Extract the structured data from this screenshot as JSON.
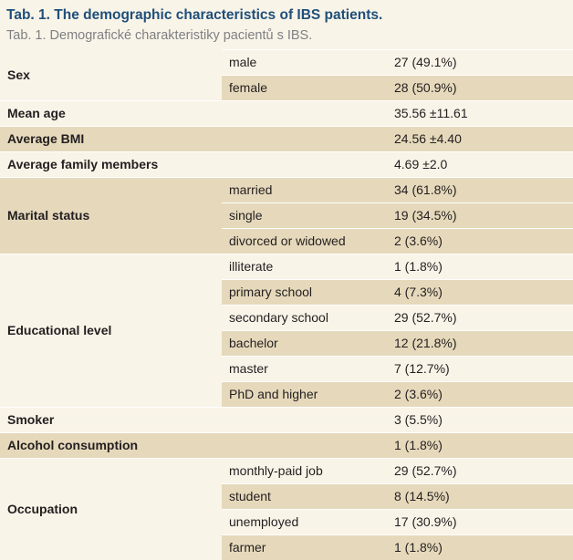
{
  "title": "Tab. 1. The demographic characteristics of IBS patients.",
  "subtitle": "Tab. 1. Demografické charakteristiky pacientů s IBS.",
  "rows": {
    "sex": {
      "label": "Sex",
      "male": {
        "category": "male",
        "value": "27 (49.1%)"
      },
      "female": {
        "category": "female",
        "value": "28 (50.9%)"
      }
    },
    "mean_age": {
      "label": "Mean age",
      "value": "35.56 ±11.61"
    },
    "average_bmi": {
      "label": "Average BMI",
      "value": "24.56 ±4.40"
    },
    "average_family": {
      "label": "Average family members",
      "value": "4.69 ±2.0"
    },
    "marital": {
      "label": "Marital status",
      "married": {
        "category": "married",
        "value": "34 (61.8%)"
      },
      "single": {
        "category": "single",
        "value": "19 (34.5%)"
      },
      "divorced": {
        "category": "divorced or widowed",
        "value": "2 (3.6%)"
      }
    },
    "education": {
      "label": "Educational level",
      "illiterate": {
        "category": "illiterate",
        "value": "1 (1.8%)"
      },
      "primary": {
        "category": "primary school",
        "value": "4 (7.3%)"
      },
      "secondary": {
        "category": "secondary school",
        "value": "29 (52.7%)"
      },
      "bachelor": {
        "category": "bachelor",
        "value": "12 (21.8%)"
      },
      "master": {
        "category": "master",
        "value": "7 (12.7%)"
      },
      "phd": {
        "category": "PhD and higher",
        "value": "2 (3.6%)"
      }
    },
    "smoker": {
      "label": "Smoker",
      "value": "3 (5.5%)"
    },
    "alcohol": {
      "label": "Alcohol consumption",
      "value": "1 (1.8%)"
    },
    "occupation": {
      "label": "Occupation",
      "monthly": {
        "category": "monthly-paid job",
        "value": "29 (52.7%)"
      },
      "student": {
        "category": "student",
        "value": "8 (14.5%)"
      },
      "unemployed": {
        "category": "unemployed",
        "value": "17 (30.9%)"
      },
      "farmer": {
        "category": "farmer",
        "value": "1 (1.8%)"
      }
    }
  }
}
